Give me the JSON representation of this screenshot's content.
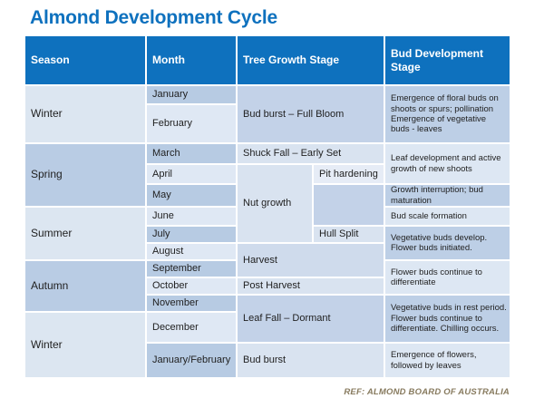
{
  "title": "Almond Development Cycle",
  "footer": "REF: ALMOND BOARD OF AUSTRALIA",
  "colors": {
    "header_bg": "#0e71be",
    "title_text": "#0e71be",
    "stripe_dark": "#b9cce4",
    "stripe_light": "#dce6f1",
    "footer_text": "#877a5e"
  },
  "table": {
    "headers": [
      "Season",
      "Month",
      "Tree Growth Stage",
      "Bud Development Stage"
    ],
    "seasons": [
      "Winter",
      "Spring",
      "Summer",
      "Autumn",
      "Winter"
    ],
    "months": [
      "January",
      "February",
      "March",
      "April",
      "May",
      "June",
      "July",
      "August",
      "September",
      "October",
      "November",
      "December",
      "January/February"
    ],
    "tree_stages": {
      "bud_burst_full_bloom": "Bud burst – Full Bloom",
      "shuck_fall_early_set": "Shuck Fall – Early Set",
      "nut_growth": "Nut growth",
      "pit_hardening": "Pit hardening",
      "hull_split": "Hull Split",
      "harvest": "Harvest",
      "post_harvest": "Post Harvest",
      "leaf_fall_dormant": "Leaf Fall – Dormant",
      "bud_burst": "Bud burst"
    },
    "bud_stages": [
      "Emergence of floral buds on shoots or spurs; pollination\nEmergence of vegetative buds - leaves",
      "Leaf development and active growth of new shoots",
      "Growth interruption; bud maturation",
      "Bud scale formation",
      "Vegetative buds develop. Flower buds initiated.",
      "Flower buds continue to differentiate",
      "Vegetative buds in rest period. Flower buds continue to differentiate. Chilling occurs.",
      "Emergence of flowers, followed by leaves"
    ]
  }
}
